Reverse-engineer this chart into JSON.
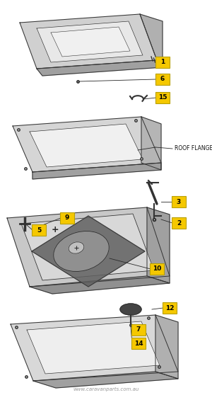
{
  "background_color": "#ffffff",
  "watermark": "www.caravanparts.com.au",
  "label_bg": "#f5c800",
  "label_text": "#000000",
  "label_fontsize": 6.5,
  "line_color": "#2a2a2a",
  "edge_color": "#333333"
}
